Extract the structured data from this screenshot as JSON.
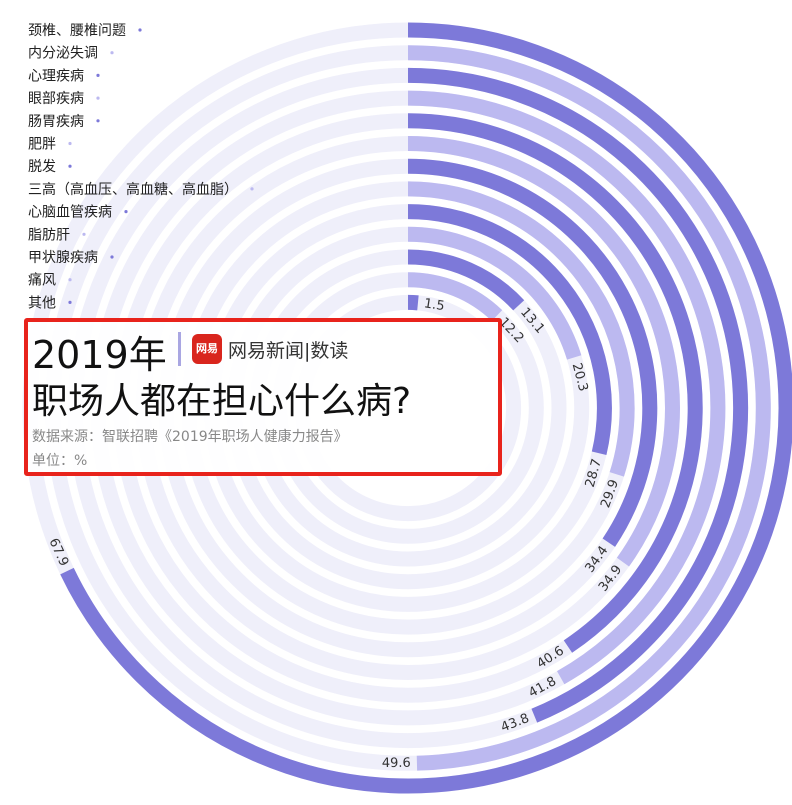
{
  "chart_data": {
    "type": "radial-bar",
    "title": "2019年 职场人都在担心什么病?",
    "source": "数据来源：智联招聘《2019年职场人健康力报告》",
    "unit": "单位：%",
    "brand": "网易新闻|数读",
    "logo_text": "网易",
    "categories": [
      "颈椎、腰椎问题",
      "内分泌失调",
      "心理疾病",
      "眼部疾病",
      "肠胃疾病",
      "肥胖",
      "脱发",
      "三高（高血压、高血糖、高血脂）",
      "心脑血管疾病",
      "脂肪肝",
      "甲状腺疾病",
      "痛风",
      "其他"
    ],
    "values": [
      67.9,
      49.6,
      43.8,
      41.8,
      40.6,
      34.9,
      34.4,
      29.9,
      28.7,
      20.3,
      13.1,
      12.2,
      1.5
    ],
    "max": 100,
    "colors": {
      "dark": "#7d79d9",
      "light": "#bcb9f0",
      "track": "#efeffa",
      "frame": "#e8231c"
    }
  },
  "title_year": "2019年",
  "title_main": "职场人都在担心什么病?"
}
